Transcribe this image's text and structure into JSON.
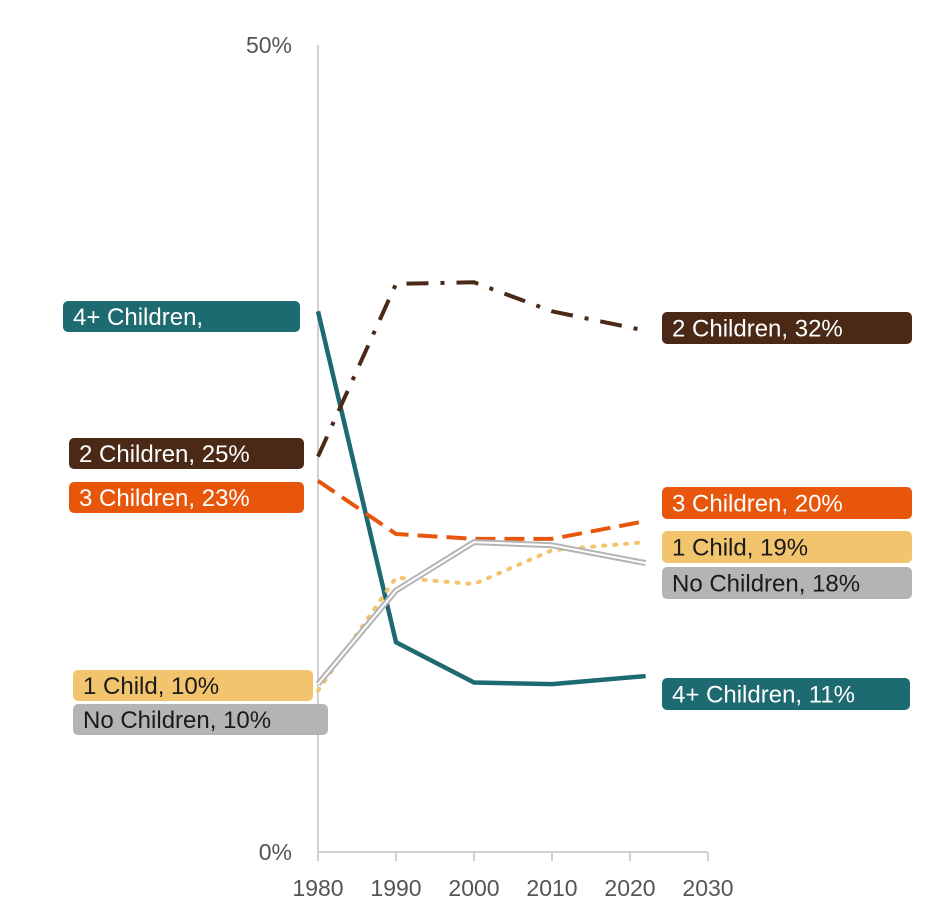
{
  "chart_data": {
    "type": "line",
    "title": "",
    "xlabel": "",
    "ylabel": "",
    "xlim": [
      1980,
      2030
    ],
    "ylim": [
      0,
      50
    ],
    "x_ticks": [
      "1980",
      "1990",
      "2000",
      "2010",
      "2020",
      "2030"
    ],
    "y_ticks": [
      "0%",
      "50%"
    ],
    "grid": false,
    "legend": "none",
    "series": [
      {
        "key": "four_plus",
        "color": "#1d6a71",
        "style": "solid",
        "points": [
          [
            1980,
            33.5
          ],
          [
            1990,
            13.0
          ],
          [
            2000,
            10.5
          ],
          [
            2010,
            10.4
          ],
          [
            2022,
            10.9
          ]
        ]
      },
      {
        "key": "two",
        "color": "#4a2917",
        "style": "dashdot",
        "points": [
          [
            1980,
            24.5
          ],
          [
            1990,
            35.2
          ],
          [
            2000,
            35.3
          ],
          [
            2010,
            33.5
          ],
          [
            2022,
            32.3
          ]
        ]
      },
      {
        "key": "three",
        "color": "#e8560c",
        "style": "dashed",
        "points": [
          [
            1980,
            23.0
          ],
          [
            1990,
            19.7
          ],
          [
            2000,
            19.4
          ],
          [
            2010,
            19.4
          ],
          [
            2022,
            20.5
          ]
        ]
      },
      {
        "key": "one",
        "color": "#f2c46d",
        "style": "dotted",
        "points": [
          [
            1980,
            10.0
          ],
          [
            1990,
            17.0
          ],
          [
            2000,
            16.6
          ],
          [
            2010,
            18.7
          ],
          [
            2022,
            19.2
          ]
        ]
      },
      {
        "key": "none",
        "color": "#b4b4b4",
        "style": "double",
        "points": [
          [
            1980,
            10.4
          ],
          [
            1990,
            16.2
          ],
          [
            2000,
            19.2
          ],
          [
            2010,
            19.0
          ],
          [
            2022,
            17.9
          ]
        ]
      }
    ],
    "labels": [
      {
        "id": "start-four",
        "text": "4+ Children,",
        "side": "start",
        "color": "#1d6a71",
        "dark_text": false
      },
      {
        "id": "start-two",
        "text": "2 Children, 25%",
        "side": "start",
        "color": "#4a2917",
        "dark_text": false
      },
      {
        "id": "start-three",
        "text": "3 Children, 23%",
        "side": "start",
        "color": "#e8560c",
        "dark_text": false
      },
      {
        "id": "start-one",
        "text": "1 Child, 10%",
        "side": "start",
        "color": "#f2c46d",
        "dark_text": true
      },
      {
        "id": "start-none",
        "text": "No Children, 10%",
        "side": "start",
        "color": "#b4b4b4",
        "dark_text": true
      },
      {
        "id": "end-two",
        "text": "2 Children, 32%",
        "side": "end",
        "color": "#4a2917",
        "dark_text": false
      },
      {
        "id": "end-three",
        "text": "3 Children, 20%",
        "side": "end",
        "color": "#e8560c",
        "dark_text": false
      },
      {
        "id": "end-one",
        "text": "1 Child, 19%",
        "side": "end",
        "color": "#f2c46d",
        "dark_text": true
      },
      {
        "id": "end-none",
        "text": "No Children, 18%",
        "side": "end",
        "color": "#b4b4b4",
        "dark_text": true
      },
      {
        "id": "end-four",
        "text": "4+ Children, 11%",
        "side": "end",
        "color": "#1d6a71",
        "dark_text": false
      }
    ]
  }
}
